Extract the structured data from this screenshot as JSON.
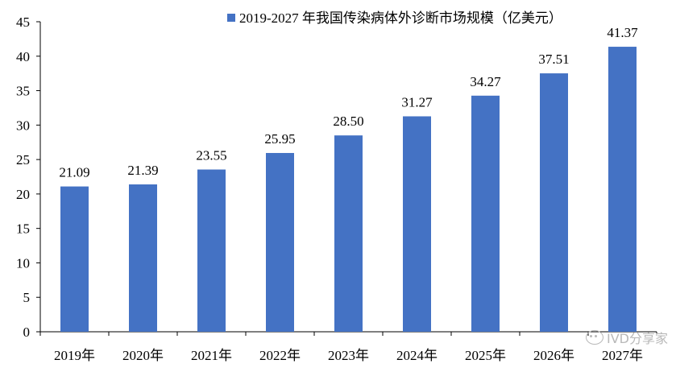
{
  "chart_data": {
    "type": "bar",
    "title": "",
    "xlabel": "",
    "ylabel": "",
    "categories": [
      "2019年",
      "2020年",
      "2021年",
      "2022年",
      "2023年",
      "2024年",
      "2025年",
      "2026年",
      "2027年"
    ],
    "series": [
      {
        "name": "2019-2027 年我国传染病体外诊断市场规模（亿美元）",
        "values": [
          21.09,
          21.39,
          23.55,
          25.95,
          28.5,
          31.27,
          34.27,
          37.51,
          41.37
        ],
        "labels": [
          "21.09",
          "21.39",
          "23.55",
          "25.95",
          "28.50",
          "31.27",
          "34.27",
          "37.51",
          "41.37"
        ]
      }
    ],
    "ylim": [
      0,
      45
    ],
    "yticks": [
      0,
      5,
      10,
      15,
      20,
      25,
      30,
      35,
      40,
      45
    ],
    "grid": false,
    "legend_position": "top-center",
    "bar_color": "#4472C4"
  },
  "watermark": {
    "text": "IVD分享家",
    "icon": "wechat-icon"
  }
}
